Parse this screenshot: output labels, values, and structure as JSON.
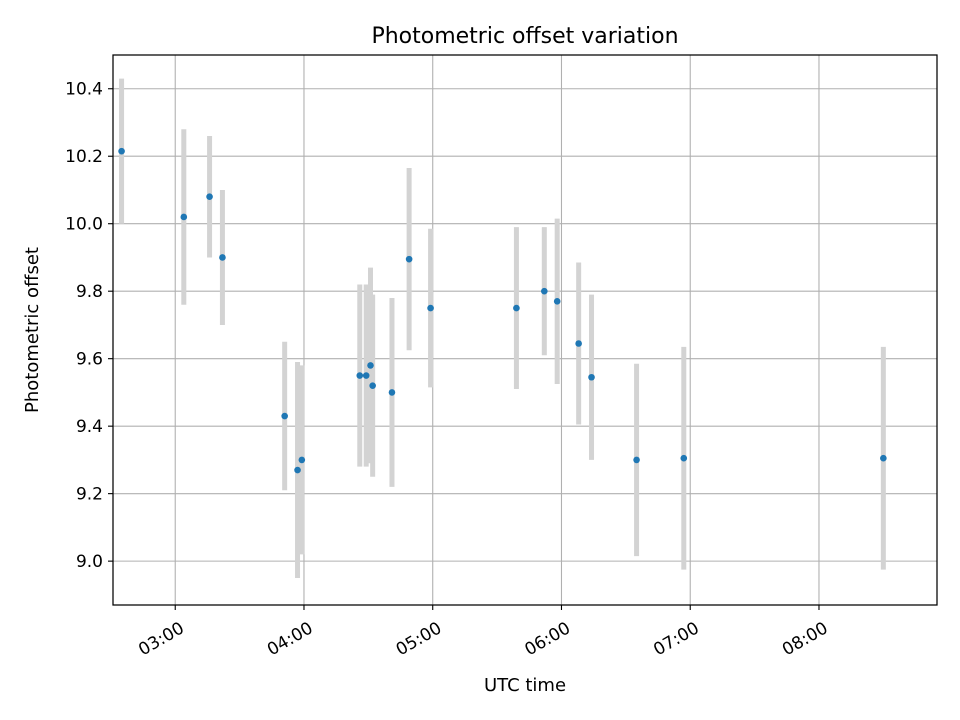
{
  "chart_data": {
    "type": "scatter",
    "title": "Photometric offset variation",
    "xlabel": "UTC time",
    "ylabel": "Photometric offset",
    "x_unit": "UTC time (HH:MM)",
    "xlim": [
      "02:31",
      "08:55"
    ],
    "ylim": [
      8.87,
      10.5
    ],
    "xticks": [
      "03:00",
      "04:00",
      "05:00",
      "06:00",
      "07:00",
      "08:00"
    ],
    "yticks": [
      9.0,
      9.2,
      9.4,
      9.6,
      9.8,
      10.0,
      10.2,
      10.4
    ],
    "ytick_labels": [
      "9.0",
      "9.2",
      "9.4",
      "9.6",
      "9.8",
      "10.0",
      "10.2",
      "10.4"
    ],
    "grid": true,
    "series": [
      {
        "marker_color": "#1f77b4",
        "errorbar_color": "#d3d3d3",
        "points": [
          {
            "x": "02:35",
            "y": 10.215,
            "err": 0.215
          },
          {
            "x": "03:04",
            "y": 10.02,
            "err": 0.26
          },
          {
            "x": "03:16",
            "y": 10.08,
            "err": 0.18
          },
          {
            "x": "03:22",
            "y": 9.9,
            "err": 0.2
          },
          {
            "x": "03:51",
            "y": 9.43,
            "err": 0.22
          },
          {
            "x": "03:57",
            "y": 9.27,
            "err": 0.32
          },
          {
            "x": "03:59",
            "y": 9.3,
            "err": 0.28
          },
          {
            "x": "04:26",
            "y": 9.55,
            "err": 0.27
          },
          {
            "x": "04:29",
            "y": 9.55,
            "err": 0.27
          },
          {
            "x": "04:31",
            "y": 9.58,
            "err": 0.29
          },
          {
            "x": "04:32",
            "y": 9.52,
            "err": 0.27
          },
          {
            "x": "04:41",
            "y": 9.5,
            "err": 0.28
          },
          {
            "x": "04:49",
            "y": 9.895,
            "err": 0.27
          },
          {
            "x": "04:59",
            "y": 9.75,
            "err": 0.235
          },
          {
            "x": "05:39",
            "y": 9.75,
            "err": 0.24
          },
          {
            "x": "05:52",
            "y": 9.8,
            "err": 0.19
          },
          {
            "x": "05:58",
            "y": 9.77,
            "err": 0.245
          },
          {
            "x": "06:08",
            "y": 9.645,
            "err": 0.24
          },
          {
            "x": "06:14",
            "y": 9.545,
            "err": 0.245
          },
          {
            "x": "06:35",
            "y": 9.3,
            "err": 0.285
          },
          {
            "x": "06:57",
            "y": 9.305,
            "err": 0.33
          },
          {
            "x": "08:30",
            "y": 9.305,
            "err": 0.33
          }
        ]
      }
    ]
  }
}
